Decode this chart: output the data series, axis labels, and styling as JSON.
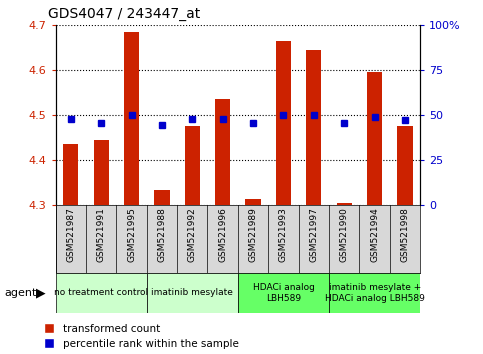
{
  "title": "GDS4047 / 243447_at",
  "samples": [
    "GSM521987",
    "GSM521991",
    "GSM521995",
    "GSM521988",
    "GSM521992",
    "GSM521996",
    "GSM521989",
    "GSM521993",
    "GSM521997",
    "GSM521990",
    "GSM521994",
    "GSM521998"
  ],
  "red_values": [
    4.435,
    4.445,
    4.685,
    4.335,
    4.475,
    4.535,
    4.315,
    4.665,
    4.645,
    4.305,
    4.595,
    4.475
  ],
  "blue_values_pct": [
    47.9,
    45.6,
    49.9,
    44.3,
    47.8,
    47.9,
    45.7,
    49.9,
    49.9,
    45.6,
    49.1,
    47.4
  ],
  "ymin": 4.3,
  "ymax": 4.7,
  "yticks": [
    4.3,
    4.4,
    4.5,
    4.6,
    4.7
  ],
  "right_yticks": [
    0,
    25,
    50,
    75,
    100
  ],
  "groups": [
    {
      "label": "no treatment control",
      "start": 0,
      "end": 3,
      "color": "#ccffcc"
    },
    {
      "label": "imatinib mesylate",
      "start": 3,
      "end": 6,
      "color": "#ccffcc"
    },
    {
      "label": "HDACi analog\nLBH589",
      "start": 6,
      "end": 9,
      "color": "#66ff66"
    },
    {
      "label": "imatinib mesylate +\nHDACi analog LBH589",
      "start": 9,
      "end": 12,
      "color": "#66ff66"
    }
  ],
  "bar_color": "#cc2200",
  "dot_color": "#0000cc",
  "sample_bg_color": "#d8d8d8",
  "label_color_left": "#cc2200",
  "label_color_right": "#0000cc",
  "legend_red": "transformed count",
  "legend_blue": "percentile rank within the sample",
  "agent_label": "agent"
}
